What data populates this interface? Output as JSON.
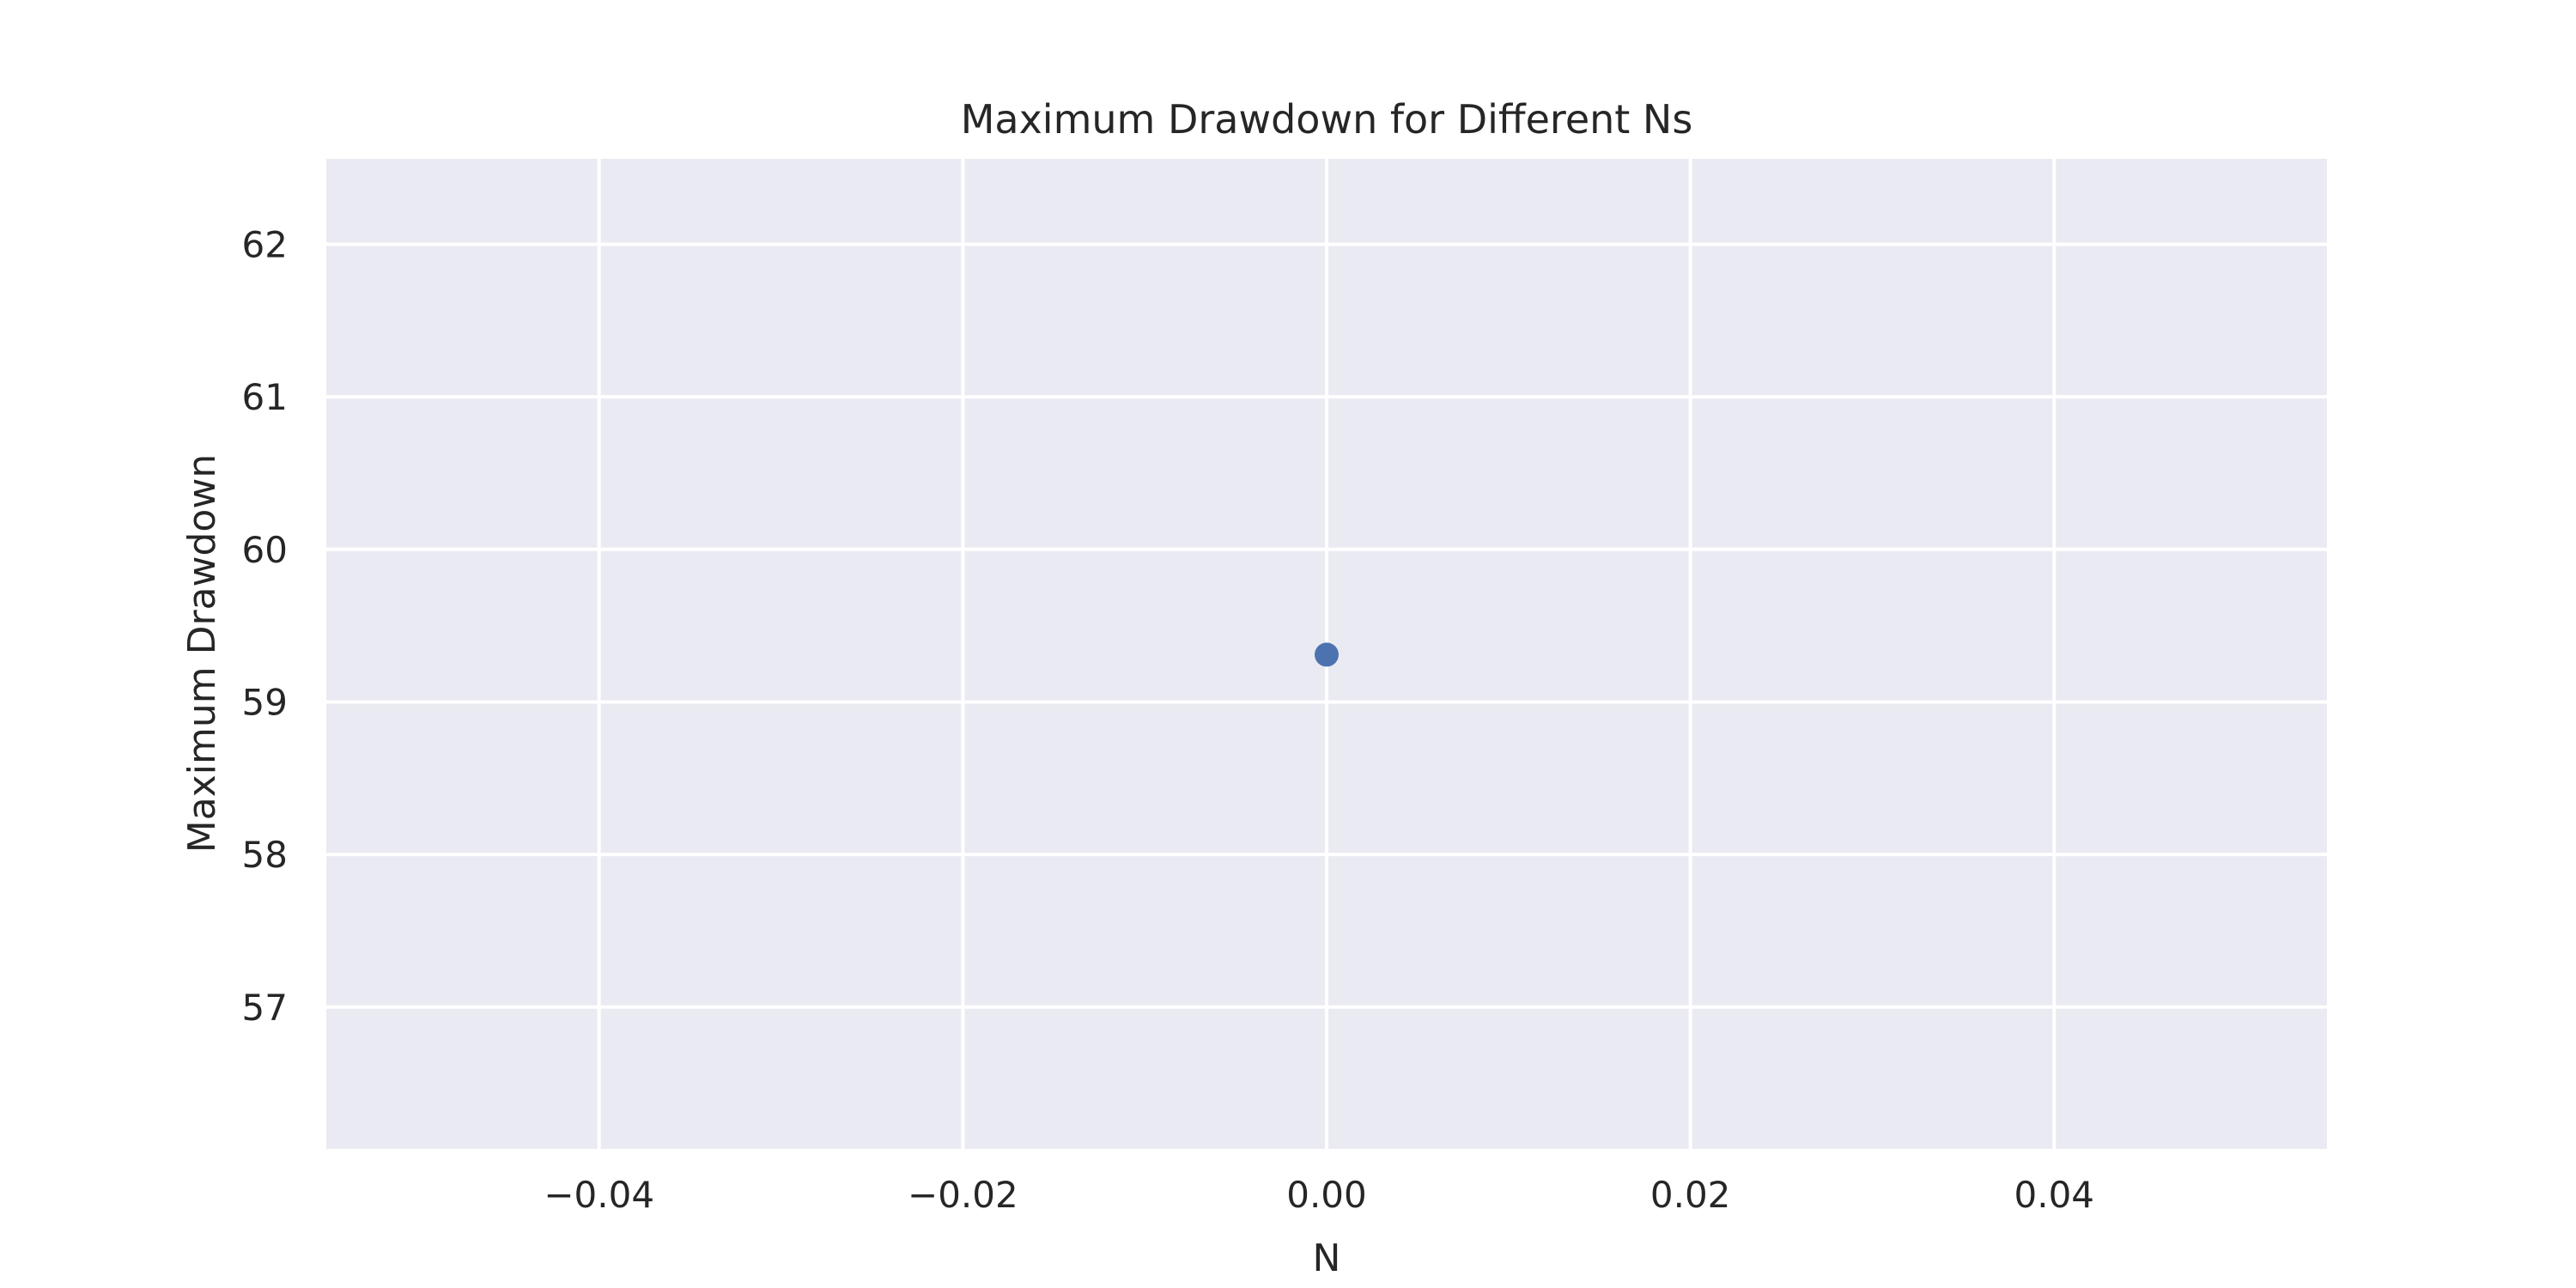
{
  "chart_data": {
    "type": "scatter",
    "title": "Maximum Drawdown for Different Ns",
    "xlabel": "N",
    "ylabel": "Maximum Drawdown",
    "xlim": [
      -0.055,
      0.055
    ],
    "ylim": [
      56.07,
      62.56
    ],
    "xticks": [
      -0.04,
      -0.02,
      0.0,
      0.02,
      0.04
    ],
    "xtick_labels": [
      "−0.04",
      "−0.02",
      "0.00",
      "0.02",
      "0.04"
    ],
    "yticks": [
      57,
      58,
      59,
      60,
      61,
      62
    ],
    "ytick_labels": [
      "57",
      "58",
      "59",
      "60",
      "61",
      "62"
    ],
    "grid": true,
    "series": [
      {
        "name": "Maximum Drawdown",
        "x": [
          0.0
        ],
        "y": [
          59.31
        ]
      }
    ],
    "colors": {
      "background": "#eaeaf2",
      "grid": "#ffffff",
      "marker": "#4c72b0",
      "text": "#262626"
    }
  }
}
